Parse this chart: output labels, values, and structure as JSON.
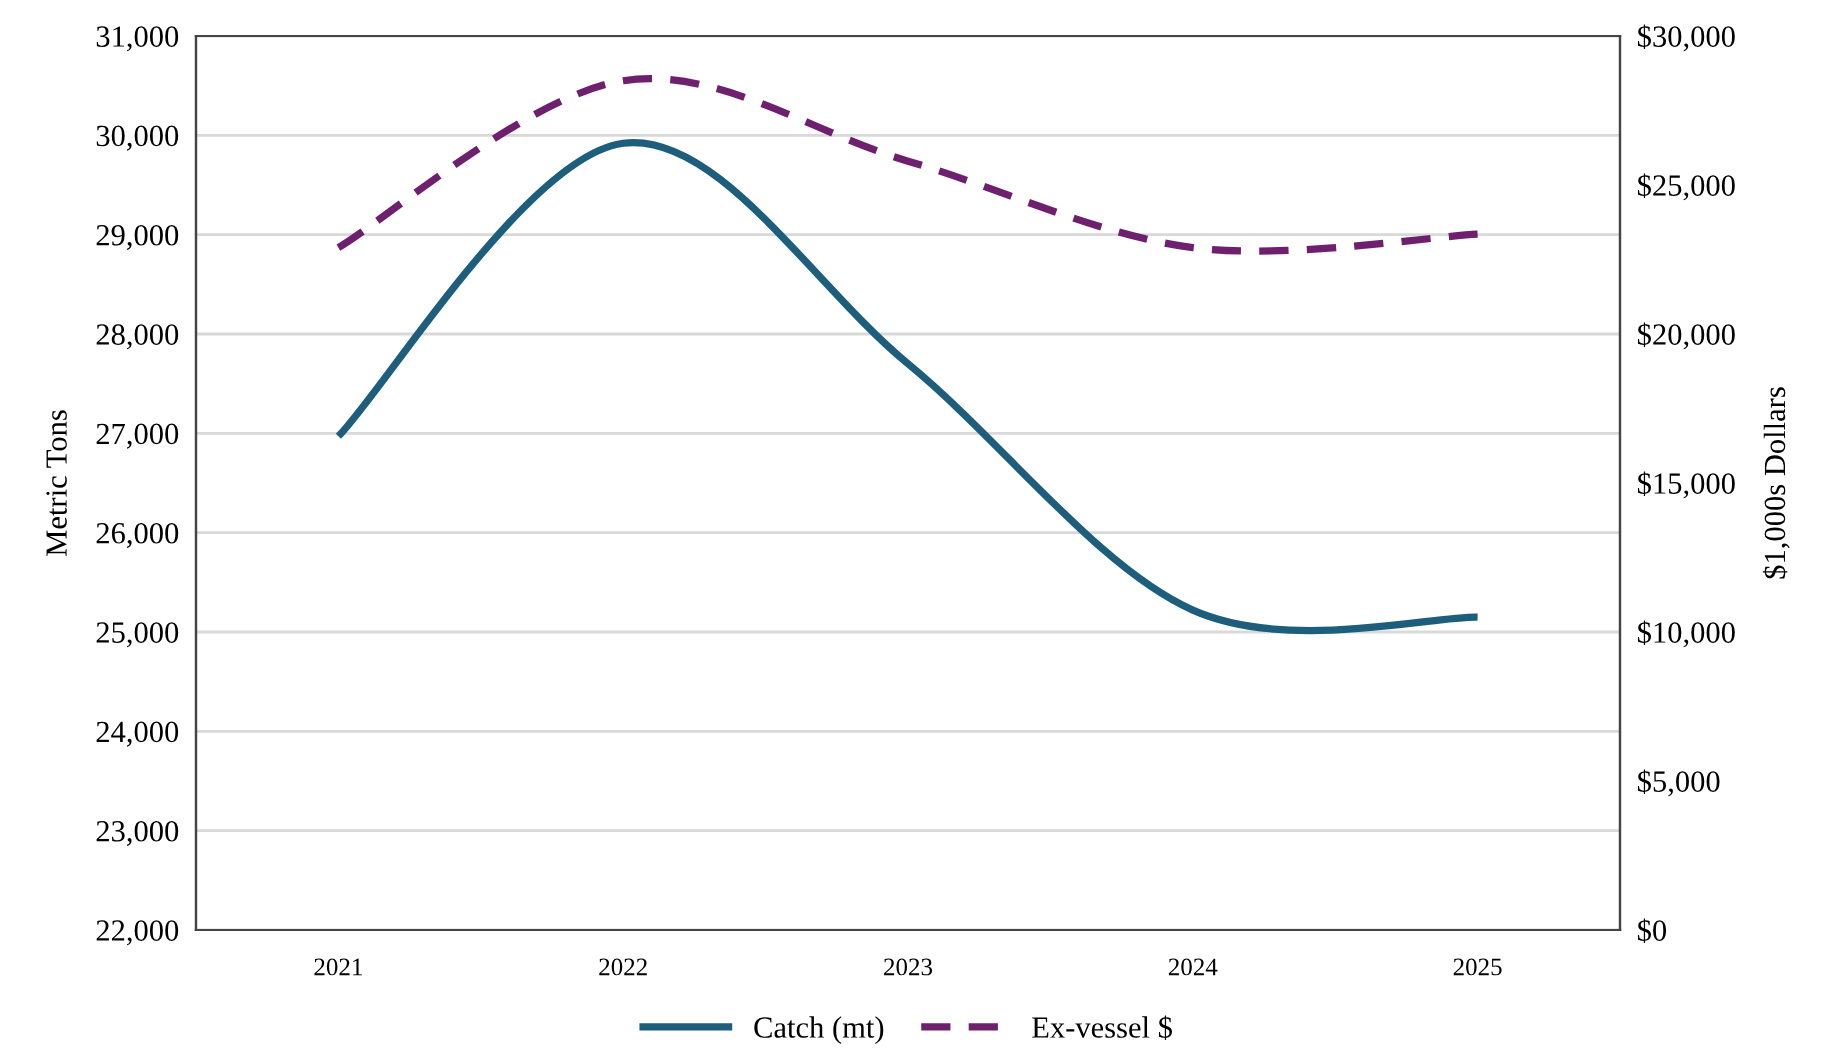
{
  "chart_data": {
    "type": "line",
    "ylabel": "Metric Tons",
    "y2label": "$1,000s Dollars",
    "categories": [
      "2021",
      "2022",
      "2023",
      "2024",
      "2025"
    ],
    "series": [
      {
        "name": "Catch (mt)",
        "color": "#1d5e7c",
        "values": [
          26970,
          29920,
          27700,
          25220,
          25150
        ],
        "line_style": "solid"
      },
      {
        "name": "Ex-vessel $",
        "color": "#6e1f6e",
        "values": [
          22900,
          28500,
          25800,
          22900,
          23350
        ],
        "axis": "y2",
        "line_style": "dashed"
      }
    ],
    "ylim": [
      22000,
      31000
    ],
    "yticks": [
      {
        "value": 22000,
        "label": "22,000"
      },
      {
        "value": 23000,
        "label": "23,000"
      },
      {
        "value": 24000,
        "label": "24,000"
      },
      {
        "value": 25000,
        "label": "25,000"
      },
      {
        "value": 26000,
        "label": "26,000"
      },
      {
        "value": 27000,
        "label": "27,000"
      },
      {
        "value": 28000,
        "label": "28,000"
      },
      {
        "value": 29000,
        "label": "29,000"
      },
      {
        "value": 30000,
        "label": "30,000"
      },
      {
        "value": 31000,
        "label": "31,000"
      }
    ],
    "y2lim": [
      0,
      30000
    ],
    "y2ticks": [
      {
        "value": 0,
        "label": "$0"
      },
      {
        "value": 5000,
        "label": "$5,000"
      },
      {
        "value": 10000,
        "label": "$10,000"
      },
      {
        "value": 15000,
        "label": "$15,000"
      },
      {
        "value": 20000,
        "label": "$20,000"
      },
      {
        "value": 25000,
        "label": "$25,000"
      },
      {
        "value": 30000,
        "label": "$30,000"
      }
    ],
    "grid": "y",
    "legend": "bottom",
    "marker": "none"
  }
}
